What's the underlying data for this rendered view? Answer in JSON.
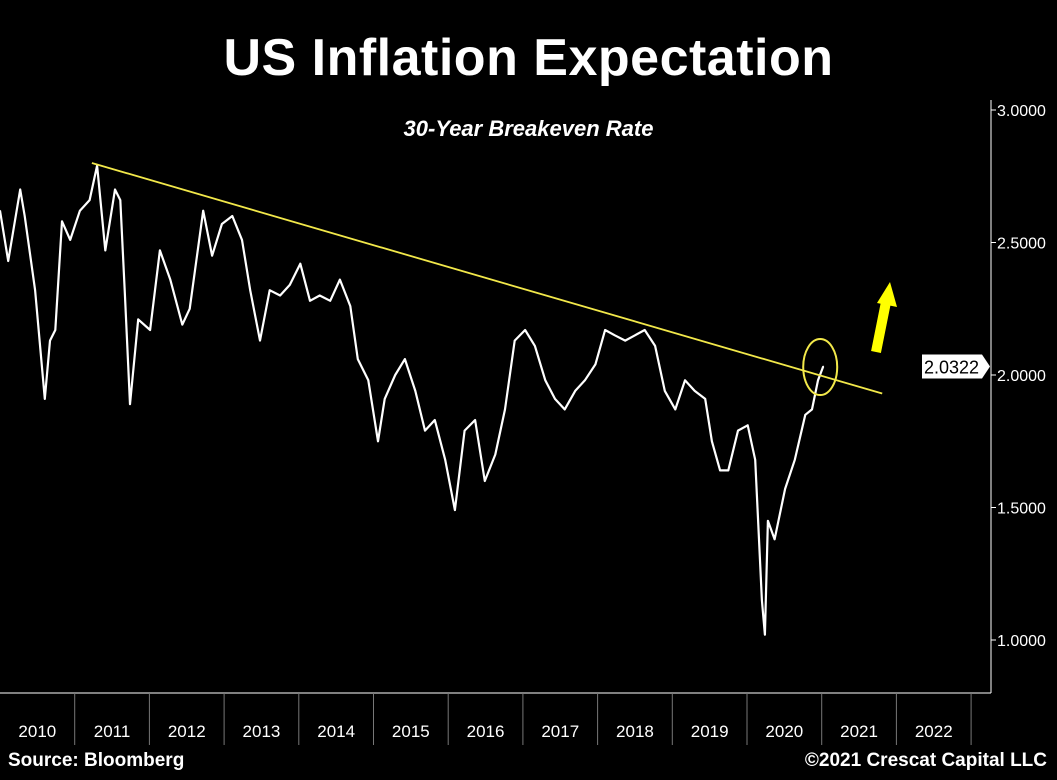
{
  "chart_data": {
    "type": "line",
    "title": "US Inflation Expectation",
    "subtitle": "30-Year Breakeven Rate",
    "xlabel": "",
    "ylabel": "",
    "xlim": [
      2010,
      2023.27
    ],
    "ylim": [
      0.8,
      3.04
    ],
    "x_tick_labels": [
      "2010",
      "2011",
      "2012",
      "2013",
      "2014",
      "2015",
      "2016",
      "2017",
      "2018",
      "2019",
      "2020",
      "2021",
      "2022"
    ],
    "y_ticks": [
      1.0,
      1.5,
      2.0,
      2.5,
      3.0
    ],
    "y_tick_labels": [
      "1.0000",
      "1.5000",
      "2.0000",
      "2.5000",
      "3.0000"
    ],
    "y_axis_side": "right",
    "grid": false,
    "last_value_label": "2.0322",
    "series": [
      {
        "color": "#ffffff",
        "x": [
          2010.0,
          2010.11,
          2010.27,
          2010.33,
          2010.47,
          2010.6,
          2010.67,
          2010.74,
          2010.83,
          2010.94,
          2011.07,
          2011.2,
          2011.3,
          2011.41,
          2011.54,
          2011.61,
          2011.67,
          2011.74,
          2011.85,
          2012.01,
          2012.14,
          2012.28,
          2012.44,
          2012.54,
          2012.72,
          2012.84,
          2012.97,
          2013.11,
          2013.24,
          2013.35,
          2013.48,
          2013.61,
          2013.75,
          2013.88,
          2014.02,
          2014.15,
          2014.28,
          2014.42,
          2014.55,
          2014.69,
          2014.79,
          2014.93,
          2015.06,
          2015.15,
          2015.29,
          2015.42,
          2015.56,
          2015.69,
          2015.82,
          2015.96,
          2016.09,
          2016.22,
          2016.36,
          2016.49,
          2016.63,
          2016.76,
          2016.89,
          2017.03,
          2017.16,
          2017.3,
          2017.43,
          2017.56,
          2017.7,
          2017.83,
          2017.97,
          2018.1,
          2018.23,
          2018.37,
          2018.5,
          2018.63,
          2018.77,
          2018.9,
          2019.04,
          2019.17,
          2019.3,
          2019.44,
          2019.53,
          2019.64,
          2019.75,
          2019.88,
          2020.01,
          2020.11,
          2020.2,
          2020.24,
          2020.28,
          2020.37,
          2020.51,
          2020.64,
          2020.78,
          2020.87,
          2020.95,
          2021.02
        ],
        "y": [
          2.62,
          2.43,
          2.7,
          2.6,
          2.32,
          1.91,
          2.13,
          2.17,
          2.58,
          2.51,
          2.62,
          2.66,
          2.79,
          2.47,
          2.7,
          2.66,
          2.32,
          1.89,
          2.21,
          2.17,
          2.47,
          2.36,
          2.19,
          2.25,
          2.62,
          2.45,
          2.57,
          2.6,
          2.51,
          2.32,
          2.13,
          2.32,
          2.3,
          2.34,
          2.42,
          2.28,
          2.3,
          2.28,
          2.36,
          2.26,
          2.06,
          1.98,
          1.75,
          1.91,
          2.0,
          2.06,
          1.94,
          1.79,
          1.83,
          1.68,
          1.49,
          1.79,
          1.83,
          1.6,
          1.7,
          1.87,
          2.13,
          2.17,
          2.11,
          1.98,
          1.91,
          1.87,
          1.94,
          1.98,
          2.04,
          2.17,
          2.15,
          2.13,
          2.15,
          2.17,
          2.11,
          1.94,
          1.87,
          1.98,
          1.94,
          1.91,
          1.75,
          1.64,
          1.64,
          1.79,
          1.81,
          1.68,
          1.15,
          1.02,
          1.45,
          1.38,
          1.57,
          1.68,
          1.85,
          1.87,
          1.98,
          2.0322
        ]
      }
    ],
    "annotations": {
      "trendline": {
        "color": "#f2e84a",
        "x": [
          2011.23,
          2021.81
        ],
        "y": [
          2.8,
          1.93
        ]
      },
      "highlight_circle": {
        "color": "#f2e84a",
        "x": 2020.98,
        "y": 2.03
      },
      "up_arrow": {
        "color": "#ffff00"
      }
    }
  },
  "footer": {
    "source": "Source: Bloomberg",
    "copyright": "©2021 Crescat Capital LLC"
  }
}
